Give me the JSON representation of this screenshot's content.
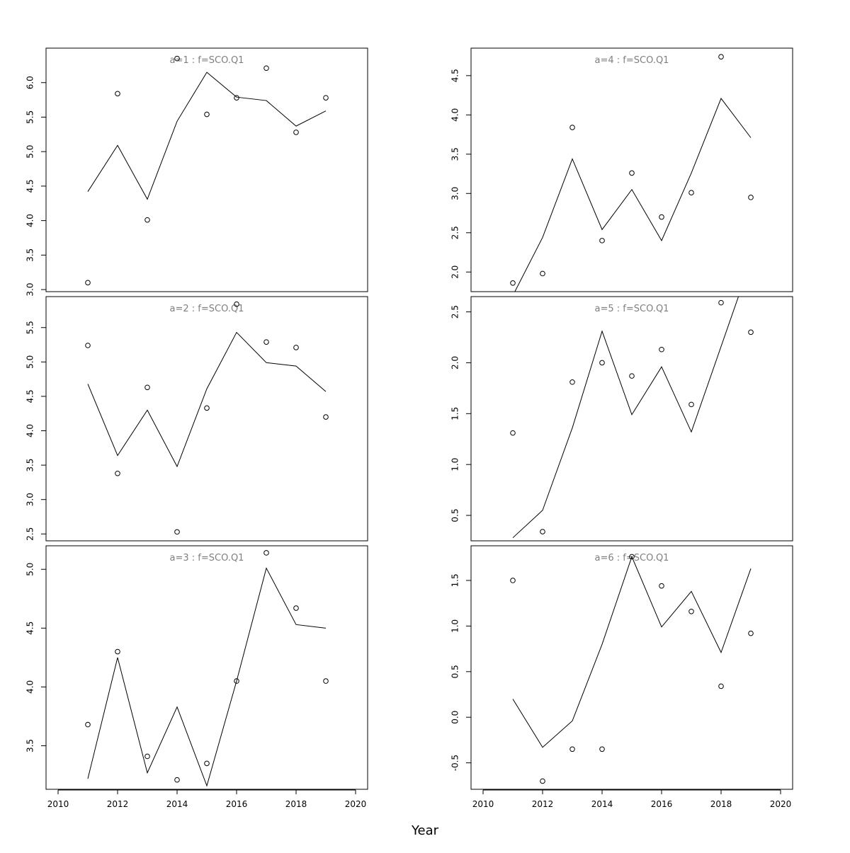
{
  "chart_data": {
    "type": "scatter",
    "layout": "3 rows x 2 columns",
    "xlabel": "Year",
    "xlim": [
      2010,
      2020
    ],
    "xticks": [
      2010,
      2012,
      2014,
      2016,
      2018,
      2020
    ],
    "series_styles": {
      "observed": "open circles",
      "fitted": "solid line"
    },
    "panels": [
      {
        "title": "a=1 : f=SCO.Q1",
        "ylim": [
          2.97,
          6.5
        ],
        "yticks": [
          3.0,
          3.5,
          4.0,
          4.5,
          5.0,
          5.5,
          6.0
        ],
        "x": [
          2011,
          2012,
          2013,
          2014,
          2015,
          2016,
          2017,
          2018,
          2019
        ],
        "observed": [
          3.1,
          5.84,
          4.01,
          6.35,
          5.54,
          5.78,
          6.21,
          5.28,
          5.78
        ],
        "fitted": [
          4.42,
          5.09,
          4.31,
          5.44,
          6.15,
          5.79,
          5.74,
          5.37,
          5.59
        ]
      },
      {
        "title": "a=2 : f=SCO.Q1",
        "ylim": [
          2.4,
          5.95
        ],
        "yticks": [
          2.5,
          3.0,
          3.5,
          4.0,
          4.5,
          5.0,
          5.5
        ],
        "x": [
          2011,
          2012,
          2013,
          2014,
          2015,
          2016,
          2017,
          2018,
          2019
        ],
        "observed": [
          5.24,
          3.38,
          4.63,
          2.53,
          4.33,
          5.84,
          5.29,
          5.21,
          4.2
        ],
        "fitted": [
          4.68,
          3.64,
          4.3,
          3.48,
          4.61,
          5.43,
          4.99,
          4.94,
          4.57
        ]
      },
      {
        "title": "a=3 : f=SCO.Q1",
        "ylim": [
          3.13,
          5.2
        ],
        "yticks": [
          3.5,
          4.0,
          4.5,
          5.0
        ],
        "x": [
          2011,
          2012,
          2013,
          2014,
          2015,
          2016,
          2017,
          2018,
          2019
        ],
        "observed": [
          3.68,
          4.3,
          3.41,
          3.21,
          3.35,
          4.05,
          5.14,
          4.67,
          4.05
        ],
        "fitted": [
          3.22,
          4.25,
          3.27,
          3.83,
          3.16,
          4.05,
          5.01,
          4.53,
          4.5
        ]
      },
      {
        "title": "a=4 : f=SCO.Q1",
        "ylim": [
          1.75,
          4.85
        ],
        "yticks": [
          2.0,
          2.5,
          3.0,
          3.5,
          4.0,
          4.5
        ],
        "x": [
          2011,
          2012,
          2013,
          2014,
          2015,
          2016,
          2017,
          2018,
          2019
        ],
        "observed": [
          1.86,
          1.98,
          3.84,
          2.4,
          3.26,
          2.7,
          3.01,
          4.74,
          2.95
        ],
        "fitted": [
          1.7,
          2.44,
          3.44,
          2.54,
          3.05,
          2.4,
          3.26,
          4.21,
          3.71
        ]
      },
      {
        "title": "a=5 : f=SCO.Q1",
        "ylim": [
          0.25,
          2.65
        ],
        "yticks": [
          0.5,
          1.0,
          1.5,
          2.0,
          2.5
        ],
        "x": [
          2011,
          2012,
          2013,
          2014,
          2015,
          2016,
          2017,
          2018,
          2019
        ],
        "observed": [
          1.31,
          0.34,
          1.81,
          2.0,
          1.87,
          2.13,
          1.59,
          2.59,
          2.3
        ],
        "fitted": [
          0.28,
          0.55,
          1.36,
          2.31,
          1.49,
          1.96,
          1.32,
          2.16,
          3.0
        ]
      },
      {
        "title": "a=6 : f=SCO.Q1",
        "ylim": [
          -0.79,
          1.88
        ],
        "yticks": [
          -0.5,
          0.0,
          0.5,
          1.0,
          1.5
        ],
        "x": [
          2011,
          2012,
          2013,
          2014,
          2015,
          2016,
          2017,
          2018,
          2019
        ],
        "observed": [
          1.5,
          -0.7,
          -0.35,
          -0.35,
          1.76,
          1.44,
          1.16,
          0.34,
          0.92
        ],
        "fitted": [
          0.2,
          -0.33,
          -0.04,
          0.8,
          1.76,
          0.99,
          1.38,
          0.71,
          1.63
        ]
      }
    ]
  }
}
